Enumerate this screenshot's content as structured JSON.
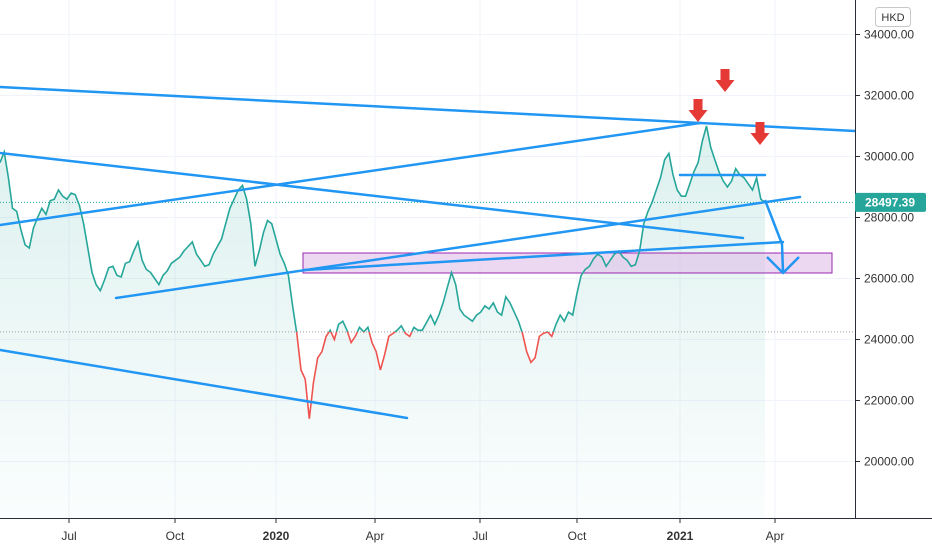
{
  "chart_data": {
    "type": "line",
    "currency": "HKD",
    "last_price": "28497.39",
    "ylim": [
      18000,
      35500
    ],
    "y_ticks": [
      "34000.00",
      "32000.00",
      "30000.00",
      "28000.00",
      "26000.00",
      "24000.00",
      "22000.00",
      "20000.00"
    ],
    "x_ticks": [
      {
        "label": "Jul",
        "bold": false
      },
      {
        "label": "Oct",
        "bold": false
      },
      {
        "label": "2020",
        "bold": true
      },
      {
        "label": "Apr",
        "bold": false
      },
      {
        "label": "Jul",
        "bold": false
      },
      {
        "label": "Oct",
        "bold": false
      },
      {
        "label": "2021",
        "bold": true
      },
      {
        "label": "Apr",
        "bold": false
      }
    ],
    "baseline_value": 24250,
    "colors": {
      "line_above": "#26a69a",
      "line_below": "#ef5350",
      "trendline": "#2196f3",
      "zone_fill": "#e1bee7",
      "zone_border": "#9c27b0",
      "arrow": "#e53935",
      "price_tag": "#26a69a"
    },
    "series": [
      {
        "values": [
          29800,
          30150,
          29300,
          28300,
          28200,
          27600,
          27100,
          27000,
          27650,
          28000,
          28300,
          28100,
          28550,
          28600,
          28900,
          28700,
          28600,
          28800,
          28750,
          28400,
          27800,
          27000,
          26200,
          25800,
          25600,
          25950,
          26350,
          26400,
          26100,
          26050,
          26500,
          26550,
          26900,
          27200,
          26600,
          26300,
          26200,
          26000,
          25800,
          26100,
          26250,
          26500,
          26600,
          26700,
          26900,
          27050,
          27200,
          26800,
          26600,
          26400,
          26450,
          26800,
          27050,
          27300,
          27800,
          28300,
          28600,
          28900,
          29050,
          28600,
          27800,
          26400,
          26900,
          27500,
          27900,
          27800,
          27300,
          26800,
          26500,
          26100,
          25100,
          24200,
          23000,
          22700,
          21400,
          22600,
          23400,
          23600,
          24100,
          24300,
          24000,
          24500,
          24600,
          24300,
          23900,
          24100,
          24400,
          24250,
          24400,
          23900,
          23600,
          23000,
          23500,
          24100,
          24200,
          24300,
          24450,
          24200,
          24100,
          24400,
          24300,
          24300,
          24550,
          24800,
          24500,
          24800,
          25200,
          25700,
          26200,
          25800,
          25000,
          24800,
          24700,
          24600,
          24800,
          24900,
          25100,
          25000,
          25200,
          24900,
          24800,
          25400,
          25200,
          24900,
          24600,
          24200,
          23600,
          23250,
          23400,
          24100,
          24200,
          24250,
          24100,
          24500,
          24800,
          24600,
          24900,
          24800,
          25500,
          26100,
          26300,
          26400,
          26650,
          26800,
          26700,
          26400,
          26600,
          26800,
          26900,
          26700,
          26600,
          26400,
          26450,
          26900,
          27800,
          28200,
          28500,
          28900,
          29300,
          29900,
          30100,
          29400,
          28900,
          28700,
          28700,
          29100,
          29500,
          29800,
          30500,
          31000,
          30300,
          29900,
          29500,
          29200,
          29000,
          29200,
          29600,
          29400,
          29300,
          29100,
          28900,
          29300,
          28600,
          28497
        ]
      }
    ]
  }
}
